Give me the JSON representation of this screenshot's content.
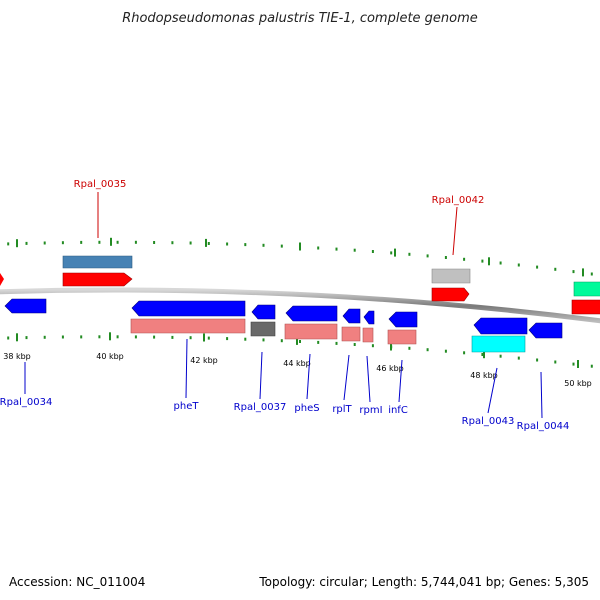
{
  "title": "Rhodopseudomonas palustris TIE-1, complete genome",
  "footer": {
    "accession": "Accession: NC_011004",
    "summary": "Topology: circular; Length: 5,744,041 bp; Genes: 5,305"
  },
  "colors": {
    "backbone": "#808080",
    "tick": "#228B22",
    "label_forward": "#CC0000",
    "label_reverse": "#0000CC",
    "cds_forward": "#FF0000",
    "cds_reverse": "#0000FF",
    "rna_light": "#F08080",
    "steelblue": "#4682B4",
    "grey_light": "#C0C0C0",
    "grey_dark": "#696969",
    "cyan": "#00FFFF",
    "teal": "#00FA9A"
  },
  "ticks": [
    "38 kbp",
    "40 kbp",
    "42 kbp",
    "44 kbp",
    "46 kbp",
    "48 kbp",
    "50 kbp"
  ],
  "gene_labels": [
    {
      "id": "rpal-0035",
      "text": "Rpal_0035",
      "strand": "forward"
    },
    {
      "id": "rpal-0042",
      "text": "Rpal_0042",
      "strand": "forward"
    },
    {
      "id": "rpal-0034",
      "text": "Rpal_0034",
      "strand": "reverse"
    },
    {
      "id": "phet",
      "text": "pheT",
      "strand": "reverse"
    },
    {
      "id": "rpal-0037",
      "text": "Rpal_0037",
      "strand": "reverse"
    },
    {
      "id": "phes",
      "text": "pheS",
      "strand": "reverse"
    },
    {
      "id": "rplt",
      "text": "rplT",
      "strand": "reverse"
    },
    {
      "id": "rpmi",
      "text": "rpmI",
      "strand": "reverse"
    },
    {
      "id": "infc",
      "text": "infC",
      "strand": "reverse"
    },
    {
      "id": "rpal-0043",
      "text": "Rpal_0043",
      "strand": "reverse"
    },
    {
      "id": "rpal-0044",
      "text": "Rpal_0044",
      "strand": "reverse"
    }
  ]
}
